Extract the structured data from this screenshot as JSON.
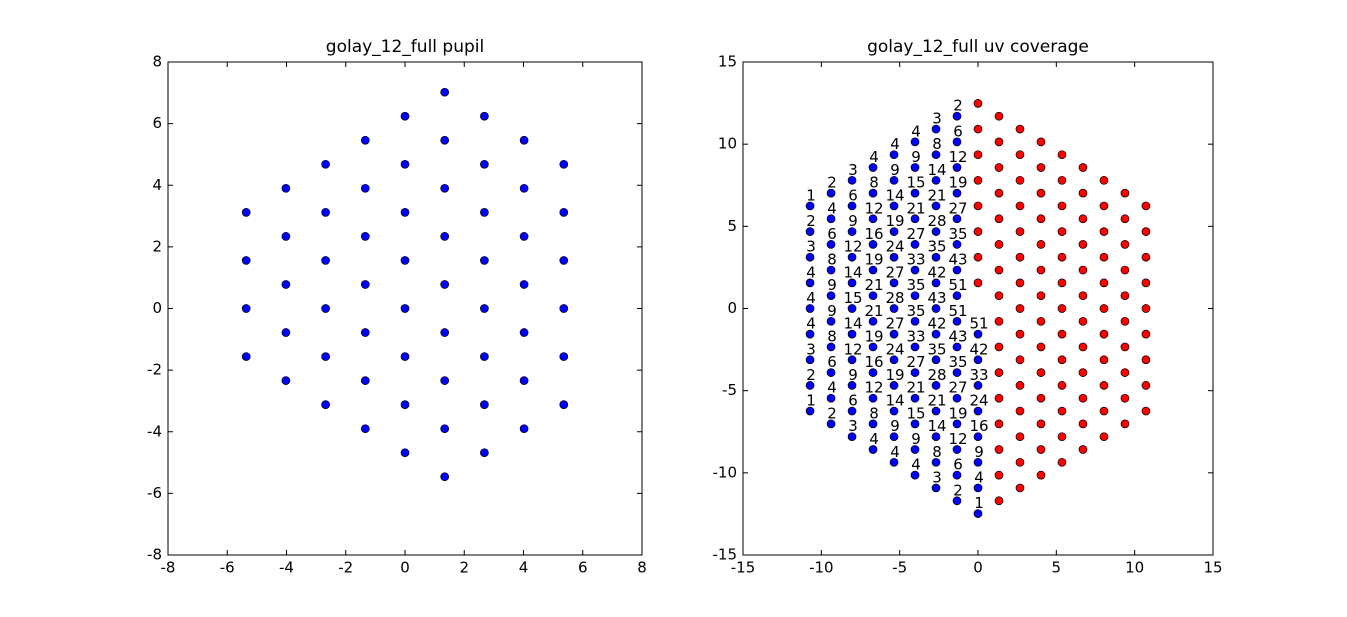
{
  "chart_data": [
    {
      "type": "scatter",
      "title": "golay_12_full pupil",
      "xlim": [
        -8,
        8
      ],
      "ylim": [
        -8,
        8
      ],
      "xticks": [
        -8,
        -6,
        -4,
        -2,
        0,
        2,
        4,
        6,
        8
      ],
      "yticks": [
        -8,
        -6,
        -4,
        -2,
        0,
        2,
        4,
        6,
        8
      ],
      "series": [
        {
          "color": "#0000ff",
          "x": [
            -5.36,
            -5.36,
            -5.36,
            -5.36,
            -4.02,
            -4.02,
            -4.02,
            -4.02,
            -4.02,
            -2.68,
            -2.68,
            -2.68,
            -2.68,
            -2.68,
            -2.68,
            -1.34,
            -1.34,
            -1.34,
            -1.34,
            -1.34,
            -1.34,
            -1.34,
            0,
            0,
            0,
            0,
            0,
            0,
            0,
            0,
            1.34,
            1.34,
            1.34,
            1.34,
            1.34,
            1.34,
            1.34,
            1.34,
            1.34,
            2.68,
            2.68,
            2.68,
            2.68,
            2.68,
            2.68,
            2.68,
            2.68,
            4.02,
            4.02,
            4.02,
            4.02,
            4.02,
            4.02,
            4.02,
            5.36,
            5.36,
            5.36,
            5.36,
            5.36,
            5.36
          ],
          "y": [
            3.12,
            1.56,
            0,
            -1.56,
            3.9,
            2.34,
            0.78,
            -0.78,
            -2.34,
            4.68,
            3.12,
            1.56,
            0,
            -1.56,
            -3.12,
            5.46,
            3.9,
            2.34,
            0.78,
            -0.78,
            -2.34,
            -3.9,
            6.24,
            4.68,
            3.12,
            1.56,
            0,
            -1.56,
            -3.12,
            -4.68,
            7.02,
            5.46,
            3.9,
            2.34,
            0.78,
            -0.78,
            -2.34,
            -3.9,
            -5.46,
            6.24,
            4.68,
            3.12,
            1.56,
            0,
            -1.56,
            -3.12,
            -4.68,
            5.46,
            3.9,
            2.34,
            0.78,
            -0.78,
            -2.34,
            -3.9,
            4.68,
            3.12,
            1.56,
            0,
            -1.56,
            -3.12
          ]
        }
      ]
    },
    {
      "type": "scatter",
      "title": "golay_12_full uv coverage",
      "xlim": [
        -15,
        15
      ],
      "ylim": [
        -15,
        15
      ],
      "xticks": [
        -15,
        -10,
        -5,
        0,
        5,
        10,
        15
      ],
      "yticks": [
        -15,
        -10,
        -5,
        0,
        5,
        10,
        15
      ],
      "series": [
        {
          "color": "#0000ff",
          "x": [
            0,
            0,
            0,
            0,
            0,
            0,
            0,
            0,
            -1.34,
            -1.34,
            -1.34,
            -1.34,
            -1.34,
            -1.34,
            -1.34,
            -1.34,
            -1.34,
            -1.34,
            -1.34,
            -1.34,
            -1.34,
            -1.34,
            -1.34,
            -1.34,
            -2.68,
            -2.68,
            -2.68,
            -2.68,
            -2.68,
            -2.68,
            -2.68,
            -2.68,
            -2.68,
            -2.68,
            -2.68,
            -2.68,
            -2.68,
            -2.68,
            -2.68,
            -4.02,
            -4.02,
            -4.02,
            -4.02,
            -4.02,
            -4.02,
            -4.02,
            -4.02,
            -4.02,
            -4.02,
            -4.02,
            -4.02,
            -4.02,
            -4.02,
            -5.36,
            -5.36,
            -5.36,
            -5.36,
            -5.36,
            -5.36,
            -5.36,
            -5.36,
            -5.36,
            -5.36,
            -5.36,
            -5.36,
            -5.36,
            -6.7,
            -6.7,
            -6.7,
            -6.7,
            -6.7,
            -6.7,
            -6.7,
            -6.7,
            -6.7,
            -6.7,
            -6.7,
            -6.7,
            -8.04,
            -8.04,
            -8.04,
            -8.04,
            -8.04,
            -8.04,
            -8.04,
            -8.04,
            -8.04,
            -8.04,
            -8.04,
            -9.38,
            -9.38,
            -9.38,
            -9.38,
            -9.38,
            -9.38,
            -9.38,
            -9.38,
            -9.38,
            -9.38,
            -10.72,
            -10.72,
            -10.72,
            -10.72,
            -10.72,
            -10.72,
            -10.72,
            -10.72,
            -10.72
          ],
          "y": [
            -1.56,
            -3.12,
            -4.68,
            -6.24,
            -7.8,
            -9.36,
            -10.92,
            -12.48,
            11.7,
            10.14,
            8.58,
            7.02,
            5.46,
            3.9,
            2.34,
            0.78,
            -0.78,
            -2.34,
            -3.9,
            -5.46,
            -7.02,
            -8.58,
            -10.14,
            -11.7,
            10.92,
            9.36,
            7.8,
            6.24,
            4.68,
            3.12,
            1.56,
            0,
            -1.56,
            -3.12,
            -4.68,
            -6.24,
            -7.8,
            -9.36,
            -10.92,
            10.14,
            8.58,
            7.02,
            5.46,
            3.9,
            2.34,
            0.78,
            -0.78,
            -2.34,
            -3.9,
            -5.46,
            -7.02,
            -8.58,
            -10.14,
            9.36,
            7.8,
            6.24,
            4.68,
            3.12,
            1.56,
            0,
            -1.56,
            -3.12,
            -4.68,
            -6.24,
            -7.8,
            -9.36,
            8.58,
            7.02,
            5.46,
            3.9,
            2.34,
            0.78,
            -0.78,
            -2.34,
            -3.9,
            -5.46,
            -7.02,
            -8.58,
            7.8,
            6.24,
            4.68,
            3.12,
            1.56,
            0,
            -1.56,
            -3.12,
            -4.68,
            -6.24,
            -7.8,
            7.02,
            5.46,
            3.9,
            2.34,
            0.78,
            -0.78,
            -2.34,
            -3.9,
            -5.46,
            -7.02,
            6.24,
            4.68,
            3.12,
            1.56,
            0,
            -1.56,
            -3.12,
            -4.68,
            -6.24
          ],
          "labels": [
            51,
            42,
            33,
            24,
            16,
            9,
            4,
            1,
            2,
            6,
            12,
            19,
            27,
            35,
            43,
            51,
            51,
            43,
            35,
            27,
            19,
            12,
            6,
            2,
            3,
            8,
            14,
            21,
            28,
            35,
            42,
            43,
            42,
            35,
            28,
            21,
            14,
            8,
            3,
            4,
            9,
            15,
            21,
            27,
            33,
            35,
            35,
            33,
            27,
            21,
            15,
            9,
            4,
            4,
            9,
            14,
            19,
            24,
            27,
            28,
            27,
            24,
            19,
            14,
            9,
            4,
            4,
            8,
            12,
            16,
            19,
            21,
            21,
            19,
            16,
            12,
            8,
            4,
            3,
            6,
            9,
            12,
            14,
            15,
            14,
            12,
            9,
            6,
            3,
            2,
            4,
            6,
            8,
            9,
            9,
            8,
            6,
            4,
            2,
            1,
            2,
            3,
            4,
            4,
            4,
            3,
            2,
            1
          ]
        },
        {
          "color": "#ff0000",
          "x": [
            0,
            0,
            0,
            0,
            0,
            0,
            0,
            0,
            1.34,
            1.34,
            1.34,
            1.34,
            1.34,
            1.34,
            1.34,
            1.34,
            1.34,
            1.34,
            1.34,
            1.34,
            1.34,
            1.34,
            1.34,
            1.34,
            2.68,
            2.68,
            2.68,
            2.68,
            2.68,
            2.68,
            2.68,
            2.68,
            2.68,
            2.68,
            2.68,
            2.68,
            2.68,
            2.68,
            2.68,
            4.02,
            4.02,
            4.02,
            4.02,
            4.02,
            4.02,
            4.02,
            4.02,
            4.02,
            4.02,
            4.02,
            4.02,
            4.02,
            4.02,
            5.36,
            5.36,
            5.36,
            5.36,
            5.36,
            5.36,
            5.36,
            5.36,
            5.36,
            5.36,
            5.36,
            5.36,
            5.36,
            6.7,
            6.7,
            6.7,
            6.7,
            6.7,
            6.7,
            6.7,
            6.7,
            6.7,
            6.7,
            6.7,
            6.7,
            8.04,
            8.04,
            8.04,
            8.04,
            8.04,
            8.04,
            8.04,
            8.04,
            8.04,
            8.04,
            8.04,
            9.38,
            9.38,
            9.38,
            9.38,
            9.38,
            9.38,
            9.38,
            9.38,
            9.38,
            9.38,
            10.72,
            10.72,
            10.72,
            10.72,
            10.72,
            10.72,
            10.72,
            10.72,
            10.72
          ],
          "y": [
            1.56,
            3.12,
            4.68,
            6.24,
            7.8,
            9.36,
            10.92,
            12.48,
            -11.7,
            -10.14,
            -8.58,
            -7.02,
            -5.46,
            -3.9,
            -2.34,
            -0.78,
            0.78,
            2.34,
            3.9,
            5.46,
            7.02,
            8.58,
            10.14,
            11.7,
            -10.92,
            -9.36,
            -7.8,
            -6.24,
            -4.68,
            -3.12,
            -1.56,
            0,
            1.56,
            3.12,
            4.68,
            6.24,
            7.8,
            9.36,
            10.92,
            -10.14,
            -8.58,
            -7.02,
            -5.46,
            -3.9,
            -2.34,
            -0.78,
            0.78,
            2.34,
            3.9,
            5.46,
            7.02,
            8.58,
            10.14,
            -9.36,
            -7.8,
            -6.24,
            -4.68,
            -3.12,
            -1.56,
            0,
            1.56,
            3.12,
            4.68,
            6.24,
            7.8,
            9.36,
            -8.58,
            -7.02,
            -5.46,
            -3.9,
            -2.34,
            -0.78,
            0.78,
            2.34,
            3.9,
            5.46,
            7.02,
            8.58,
            -7.8,
            -6.24,
            -4.68,
            -3.12,
            -1.56,
            0,
            1.56,
            3.12,
            4.68,
            6.24,
            7.8,
            -7.02,
            -5.46,
            -3.9,
            -2.34,
            -0.78,
            0.78,
            2.34,
            3.9,
            5.46,
            7.02,
            -6.24,
            -4.68,
            -3.12,
            -1.56,
            0,
            1.56,
            3.12,
            4.68,
            6.24
          ]
        }
      ]
    }
  ]
}
